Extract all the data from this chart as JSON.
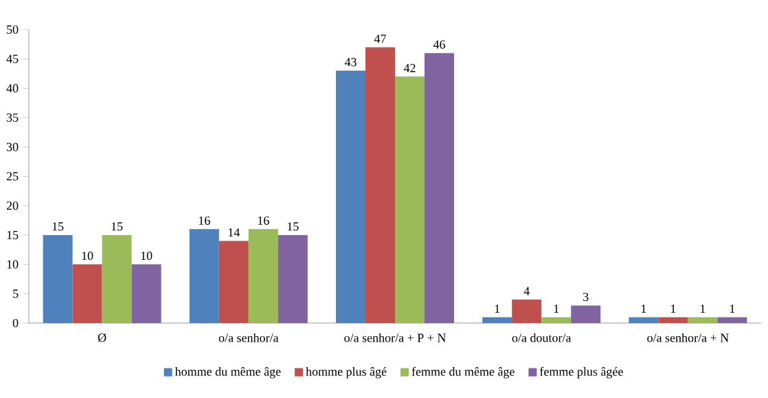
{
  "chart_data": {
    "type": "bar",
    "categories": [
      "Ø",
      "o/a senhor/a",
      "o/a senhor/a + P + N",
      "o/a doutor/a",
      "o/a senhor/a + N"
    ],
    "series": [
      {
        "name": "homme du même âge",
        "color": "#4f81bd",
        "values": [
          15,
          16,
          43,
          1,
          1
        ]
      },
      {
        "name": "homme plus âgé",
        "color": "#c0504d",
        "values": [
          10,
          14,
          47,
          4,
          1
        ]
      },
      {
        "name": "femme du même âge",
        "color": "#9bbb59",
        "values": [
          15,
          16,
          42,
          1,
          1
        ]
      },
      {
        "name": "femme plus âgée",
        "color": "#8064a2",
        "values": [
          10,
          15,
          46,
          3,
          1
        ]
      }
    ],
    "ylim": [
      0,
      50
    ],
    "yticks": [
      0,
      5,
      10,
      15,
      20,
      25,
      30,
      35,
      40,
      45,
      50
    ],
    "data_labels": true,
    "legend": "bottom",
    "grid": false
  }
}
